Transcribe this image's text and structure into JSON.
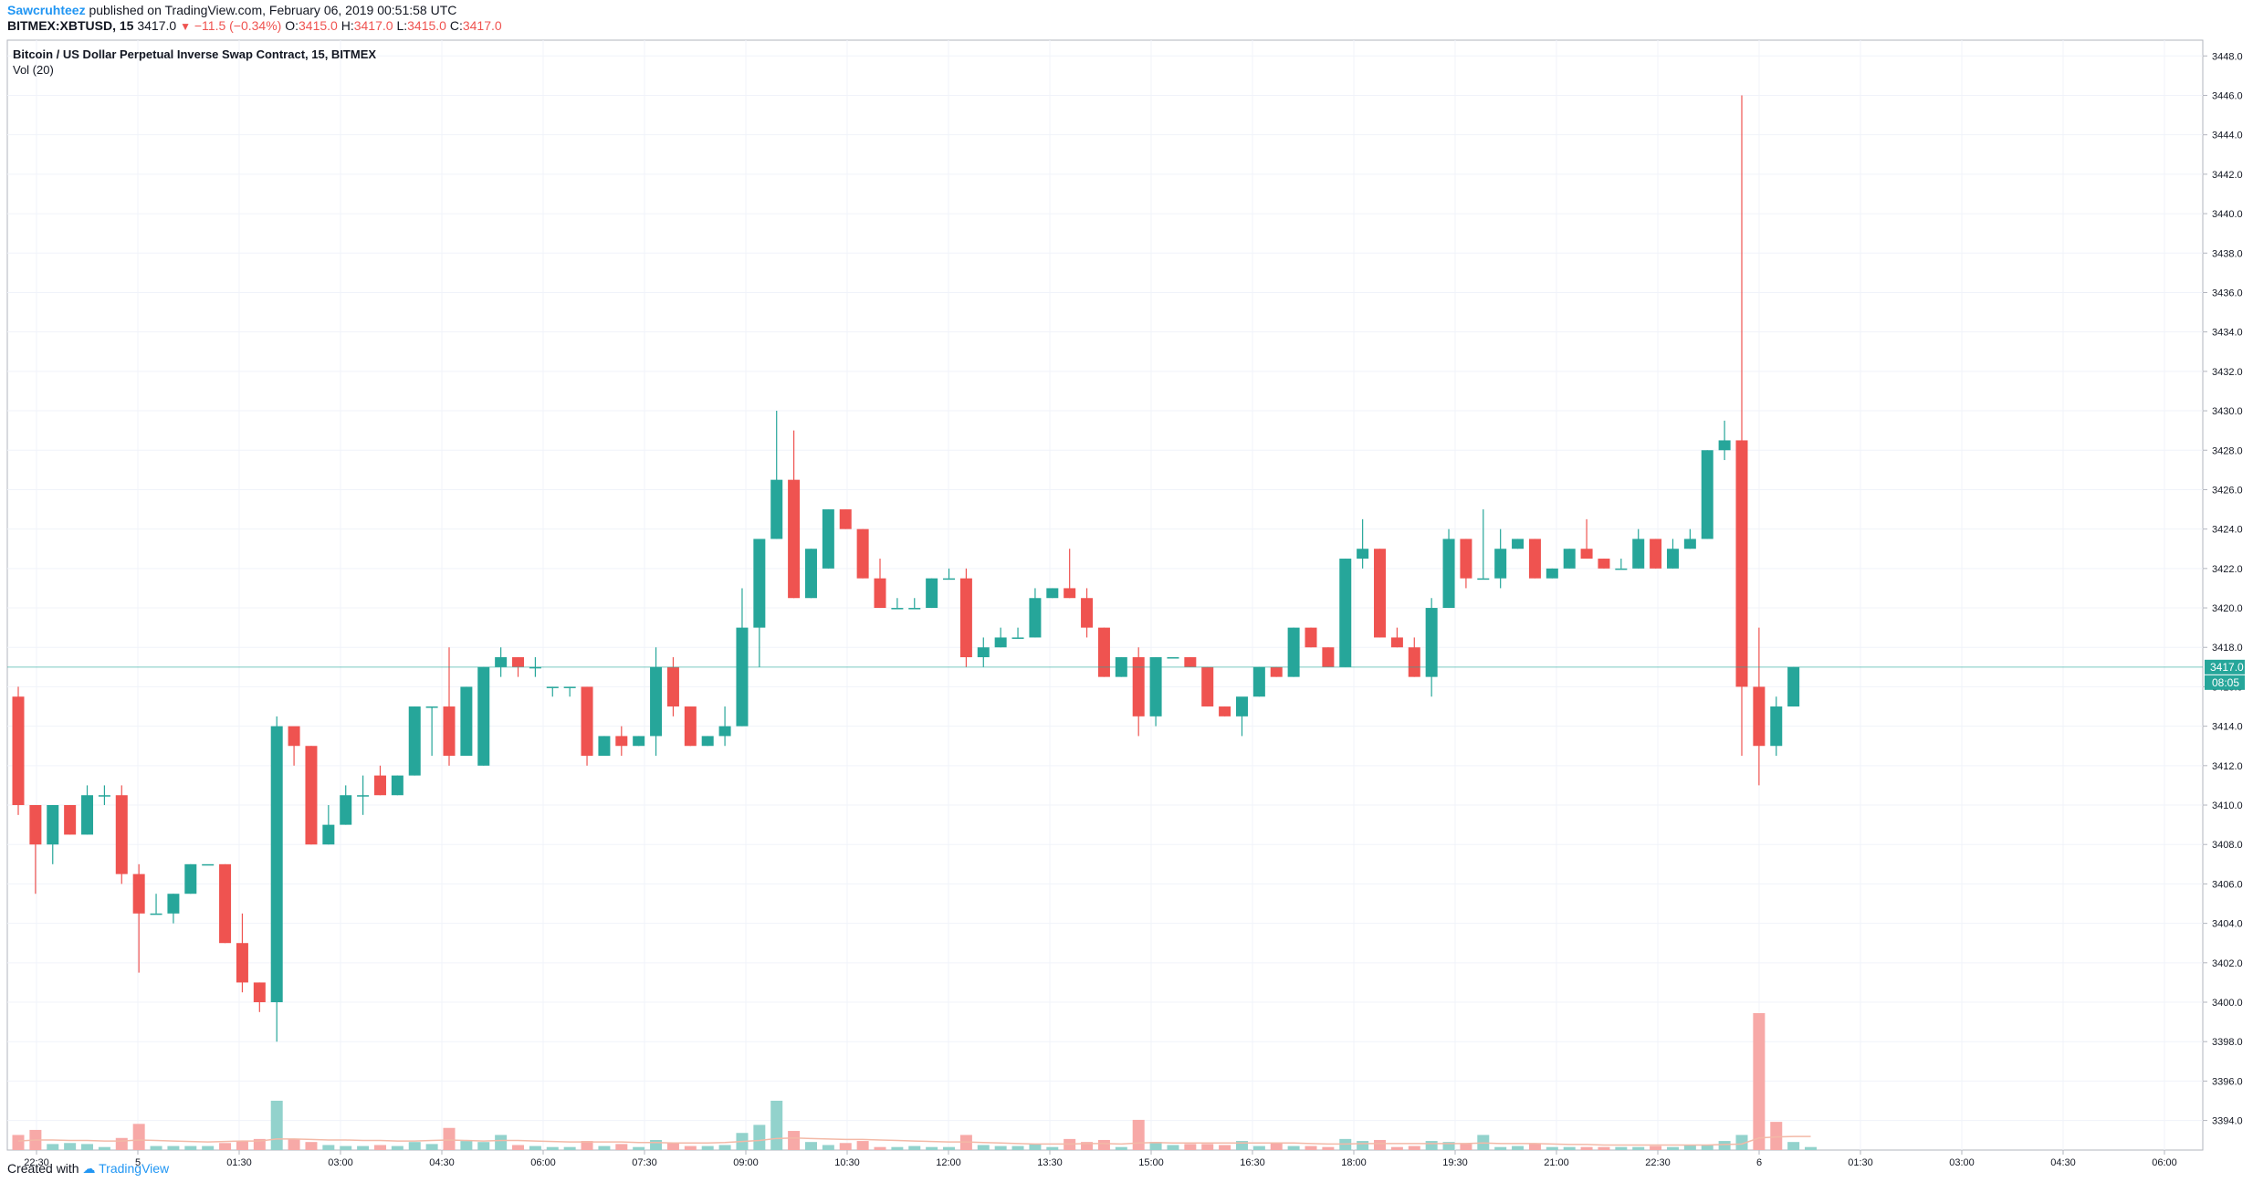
{
  "header": {
    "user": "Sawcruhteez",
    "published": "published on TradingView.com, February 06, 2019 00:51:58 UTC"
  },
  "symbol_bar": {
    "symbol": "BITMEX:XBTUSD, 15",
    "last": "3417.0",
    "change": "−11.5 (−0.34%)",
    "o_label": "O:",
    "o": "3415.0",
    "h_label": "H:",
    "h": "3417.0",
    "l_label": "L:",
    "l": "3415.0",
    "c_label": "C:",
    "c": "3417.0"
  },
  "footer": {
    "created_with": "Created with",
    "brand": "TradingView"
  },
  "colors": {
    "up": "#26a69a",
    "down": "#ef5350",
    "vol_up": "#92d2cc",
    "vol_down": "#f7a9a7",
    "grid": "#f0f3fa",
    "axis": "#787b86",
    "price_line": "#26a69a"
  },
  "chart_data": {
    "type": "candlestick",
    "title": "Bitcoin / US Dollar Perpetual Inverse Swap Contract, 15, BITMEX",
    "subtitle": "Vol (20)",
    "interval_minutes": 15,
    "ylim": [
      3392.5,
      3448.8
    ],
    "y_ticks": [
      "3394.0",
      "3396.0",
      "3398.0",
      "3400.0",
      "3402.0",
      "3404.0",
      "3406.0",
      "3408.0",
      "3410.0",
      "3412.0",
      "3414.0",
      "3416.0",
      "3418.0",
      "3420.0",
      "3422.0",
      "3424.0",
      "3426.0",
      "3428.0",
      "3430.0",
      "3432.0",
      "3434.0",
      "3436.0",
      "3438.0",
      "3440.0",
      "3442.0",
      "3444.0",
      "3446.0",
      "3448.0"
    ],
    "x_ticks": [
      "22:30",
      "5",
      "01:30",
      "03:00",
      "04:30",
      "06:00",
      "07:30",
      "09:00",
      "10:30",
      "12:00",
      "13:30",
      "15:00",
      "16:30",
      "18:00",
      "19:30",
      "21:00",
      "22:30",
      "6",
      "01:30",
      "03:00",
      "04:30",
      "06:00"
    ],
    "last_price_label": "3417.0",
    "countdown_label": "08:05",
    "last_price": 3417.0,
    "candles": [
      {
        "o": 3415.5,
        "h": 3416.0,
        "l": 3409.5,
        "c": 3410.0
      },
      {
        "o": 3410.0,
        "h": 3410.0,
        "l": 3405.5,
        "c": 3408.0
      },
      {
        "o": 3408.0,
        "h": 3410.0,
        "l": 3407.0,
        "c": 3410.0
      },
      {
        "o": 3410.0,
        "h": 3410.0,
        "l": 3408.5,
        "c": 3408.5
      },
      {
        "o": 3408.5,
        "h": 3411.0,
        "l": 3408.5,
        "c": 3410.5
      },
      {
        "o": 3410.5,
        "h": 3411.0,
        "l": 3410.0,
        "c": 3410.5
      },
      {
        "o": 3410.5,
        "h": 3411.0,
        "l": 3406.0,
        "c": 3406.5
      },
      {
        "o": 3406.5,
        "h": 3407.0,
        "l": 3401.5,
        "c": 3404.5
      },
      {
        "o": 3404.5,
        "h": 3405.5,
        "l": 3404.5,
        "c": 3404.5
      },
      {
        "o": 3404.5,
        "h": 3405.5,
        "l": 3404.0,
        "c": 3405.5
      },
      {
        "o": 3405.5,
        "h": 3407.0,
        "l": 3405.5,
        "c": 3407.0
      },
      {
        "o": 3407.0,
        "h": 3407.0,
        "l": 3407.0,
        "c": 3407.0
      },
      {
        "o": 3407.0,
        "h": 3407.0,
        "l": 3403.0,
        "c": 3403.0
      },
      {
        "o": 3403.0,
        "h": 3404.5,
        "l": 3400.5,
        "c": 3401.0
      },
      {
        "o": 3401.0,
        "h": 3401.0,
        "l": 3399.5,
        "c": 3400.0
      },
      {
        "o": 3400.0,
        "h": 3414.5,
        "l": 3398.0,
        "c": 3414.0
      },
      {
        "o": 3414.0,
        "h": 3413.5,
        "l": 3412.0,
        "c": 3413.0
      },
      {
        "o": 3413.0,
        "h": 3413.0,
        "l": 3408.0,
        "c": 3408.0
      },
      {
        "o": 3408.0,
        "h": 3410.0,
        "l": 3408.0,
        "c": 3409.0
      },
      {
        "o": 3409.0,
        "h": 3411.0,
        "l": 3409.0,
        "c": 3410.5
      },
      {
        "o": 3410.5,
        "h": 3411.5,
        "l": 3409.5,
        "c": 3410.5
      },
      {
        "o": 3411.5,
        "h": 3412.0,
        "l": 3410.5,
        "c": 3410.5
      },
      {
        "o": 3410.5,
        "h": 3411.5,
        "l": 3410.5,
        "c": 3411.5
      },
      {
        "o": 3411.5,
        "h": 3415.0,
        "l": 3411.5,
        "c": 3415.0
      },
      {
        "o": 3415.0,
        "h": 3415.0,
        "l": 3412.5,
        "c": 3415.0
      },
      {
        "o": 3415.0,
        "h": 3418.0,
        "l": 3412.0,
        "c": 3412.5
      },
      {
        "o": 3412.5,
        "h": 3416.0,
        "l": 3412.5,
        "c": 3416.0
      },
      {
        "o": 3412.0,
        "h": 3417.0,
        "l": 3412.0,
        "c": 3417.0
      },
      {
        "o": 3417.0,
        "h": 3418.0,
        "l": 3416.5,
        "c": 3417.5
      },
      {
        "o": 3417.5,
        "h": 3417.5,
        "l": 3416.5,
        "c": 3417.0
      },
      {
        "o": 3417.0,
        "h": 3417.5,
        "l": 3416.5,
        "c": 3417.0
      },
      {
        "o": 3416.0,
        "h": 3416.0,
        "l": 3415.5,
        "c": 3416.0
      },
      {
        "o": 3416.0,
        "h": 3416.0,
        "l": 3415.5,
        "c": 3416.0
      },
      {
        "o": 3416.0,
        "h": 3416.0,
        "l": 3412.0,
        "c": 3412.5
      },
      {
        "o": 3412.5,
        "h": 3413.5,
        "l": 3412.5,
        "c": 3413.5
      },
      {
        "o": 3413.5,
        "h": 3414.0,
        "l": 3412.5,
        "c": 3413.0
      },
      {
        "o": 3413.0,
        "h": 3413.5,
        "l": 3413.0,
        "c": 3413.5
      },
      {
        "o": 3413.5,
        "h": 3418.0,
        "l": 3412.5,
        "c": 3417.0
      },
      {
        "o": 3417.0,
        "h": 3417.5,
        "l": 3414.5,
        "c": 3415.0
      },
      {
        "o": 3415.0,
        "h": 3415.0,
        "l": 3413.0,
        "c": 3413.0
      },
      {
        "o": 3413.0,
        "h": 3413.5,
        "l": 3413.0,
        "c": 3413.5
      },
      {
        "o": 3413.5,
        "h": 3415.0,
        "l": 3413.0,
        "c": 3414.0
      },
      {
        "o": 3414.0,
        "h": 3421.0,
        "l": 3414.0,
        "c": 3419.0
      },
      {
        "o": 3419.0,
        "h": 3423.5,
        "l": 3417.0,
        "c": 3423.5
      },
      {
        "o": 3423.5,
        "h": 3430.0,
        "l": 3423.5,
        "c": 3426.5
      },
      {
        "o": 3426.5,
        "h": 3429.0,
        "l": 3420.5,
        "c": 3420.5
      },
      {
        "o": 3420.5,
        "h": 3423.0,
        "l": 3420.5,
        "c": 3423.0
      },
      {
        "o": 3422.0,
        "h": 3425.0,
        "l": 3422.0,
        "c": 3425.0
      },
      {
        "o": 3425.0,
        "h": 3425.0,
        "l": 3424.0,
        "c": 3424.0
      },
      {
        "o": 3424.0,
        "h": 3424.0,
        "l": 3421.5,
        "c": 3421.5
      },
      {
        "o": 3421.5,
        "h": 3422.5,
        "l": 3420.0,
        "c": 3420.0
      },
      {
        "o": 3420.0,
        "h": 3420.5,
        "l": 3420.0,
        "c": 3420.0
      },
      {
        "o": 3420.0,
        "h": 3420.5,
        "l": 3420.0,
        "c": 3420.0
      },
      {
        "o": 3420.0,
        "h": 3421.5,
        "l": 3420.0,
        "c": 3421.5
      },
      {
        "o": 3421.5,
        "h": 3422.0,
        "l": 3421.5,
        "c": 3421.5
      },
      {
        "o": 3421.5,
        "h": 3422.0,
        "l": 3417.0,
        "c": 3417.5
      },
      {
        "o": 3417.5,
        "h": 3418.5,
        "l": 3417.0,
        "c": 3418.0
      },
      {
        "o": 3418.0,
        "h": 3419.0,
        "l": 3418.0,
        "c": 3418.5
      },
      {
        "o": 3418.5,
        "h": 3419.0,
        "l": 3418.5,
        "c": 3418.5
      },
      {
        "o": 3418.5,
        "h": 3421.0,
        "l": 3418.5,
        "c": 3420.5
      },
      {
        "o": 3420.5,
        "h": 3421.0,
        "l": 3420.5,
        "c": 3421.0
      },
      {
        "o": 3421.0,
        "h": 3423.0,
        "l": 3420.5,
        "c": 3420.5
      },
      {
        "o": 3420.5,
        "h": 3421.0,
        "l": 3418.5,
        "c": 3419.0
      },
      {
        "o": 3419.0,
        "h": 3419.0,
        "l": 3416.5,
        "c": 3416.5
      },
      {
        "o": 3416.5,
        "h": 3417.5,
        "l": 3416.5,
        "c": 3417.5
      },
      {
        "o": 3417.5,
        "h": 3418.0,
        "l": 3413.5,
        "c": 3414.5
      },
      {
        "o": 3414.5,
        "h": 3417.5,
        "l": 3414.0,
        "c": 3417.5
      },
      {
        "o": 3417.5,
        "h": 3417.5,
        "l": 3417.5,
        "c": 3417.5
      },
      {
        "o": 3417.5,
        "h": 3417.5,
        "l": 3417.0,
        "c": 3417.0
      },
      {
        "o": 3417.0,
        "h": 3417.0,
        "l": 3415.0,
        "c": 3415.0
      },
      {
        "o": 3415.0,
        "h": 3415.0,
        "l": 3414.5,
        "c": 3414.5
      },
      {
        "o": 3414.5,
        "h": 3415.0,
        "l": 3413.5,
        "c": 3415.5
      },
      {
        "o": 3415.5,
        "h": 3417.0,
        "l": 3415.5,
        "c": 3417.0
      },
      {
        "o": 3417.0,
        "h": 3417.0,
        "l": 3416.5,
        "c": 3416.5
      },
      {
        "o": 3416.5,
        "h": 3419.0,
        "l": 3416.5,
        "c": 3419.0
      },
      {
        "o": 3419.0,
        "h": 3419.0,
        "l": 3418.0,
        "c": 3418.0
      },
      {
        "o": 3418.0,
        "h": 3418.0,
        "l": 3417.0,
        "c": 3417.0
      },
      {
        "o": 3417.0,
        "h": 3422.5,
        "l": 3417.0,
        "c": 3422.5
      },
      {
        "o": 3422.5,
        "h": 3424.5,
        "l": 3422.0,
        "c": 3423.0
      },
      {
        "o": 3423.0,
        "h": 3423.0,
        "l": 3418.5,
        "c": 3418.5
      },
      {
        "o": 3418.5,
        "h": 3419.0,
        "l": 3418.0,
        "c": 3418.0
      },
      {
        "o": 3418.0,
        "h": 3418.5,
        "l": 3416.5,
        "c": 3416.5
      },
      {
        "o": 3416.5,
        "h": 3420.5,
        "l": 3415.5,
        "c": 3420.0
      },
      {
        "o": 3420.0,
        "h": 3424.0,
        "l": 3420.0,
        "c": 3423.5
      },
      {
        "o": 3423.5,
        "h": 3423.5,
        "l": 3421.0,
        "c": 3421.5
      },
      {
        "o": 3421.5,
        "h": 3425.0,
        "l": 3421.5,
        "c": 3421.5
      },
      {
        "o": 3421.5,
        "h": 3424.0,
        "l": 3421.0,
        "c": 3423.0
      },
      {
        "o": 3423.0,
        "h": 3423.5,
        "l": 3423.0,
        "c": 3423.5
      },
      {
        "o": 3423.5,
        "h": 3423.5,
        "l": 3421.5,
        "c": 3421.5
      },
      {
        "o": 3421.5,
        "h": 3422.0,
        "l": 3421.5,
        "c": 3422.0
      },
      {
        "o": 3422.0,
        "h": 3423.0,
        "l": 3422.0,
        "c": 3423.0
      },
      {
        "o": 3423.0,
        "h": 3424.5,
        "l": 3422.5,
        "c": 3422.5
      },
      {
        "o": 3422.5,
        "h": 3422.5,
        "l": 3422.0,
        "c": 3422.0
      },
      {
        "o": 3422.0,
        "h": 3422.5,
        "l": 3422.0,
        "c": 3422.0
      },
      {
        "o": 3422.0,
        "h": 3424.0,
        "l": 3422.0,
        "c": 3423.5
      },
      {
        "o": 3423.5,
        "h": 3423.5,
        "l": 3422.0,
        "c": 3422.0
      },
      {
        "o": 3422.0,
        "h": 3423.5,
        "l": 3422.0,
        "c": 3423.0
      },
      {
        "o": 3423.0,
        "h": 3424.0,
        "l": 3423.0,
        "c": 3423.5
      },
      {
        "o": 3423.5,
        "h": 3428.0,
        "l": 3423.5,
        "c": 3428.0
      },
      {
        "o": 3428.0,
        "h": 3429.5,
        "l": 3427.5,
        "c": 3428.5
      },
      {
        "o": 3428.5,
        "h": 3446.0,
        "l": 3412.5,
        "c": 3416.0
      },
      {
        "o": 3416.0,
        "h": 3419.0,
        "l": 3411.0,
        "c": 3413.0
      },
      {
        "o": 3413.0,
        "h": 3415.5,
        "l": 3412.5,
        "c": 3415.0
      },
      {
        "o": 3415.0,
        "h": 3417.0,
        "l": 3415.0,
        "c": 3417.0
      }
    ],
    "volume": [
      {
        "v": 1.5,
        "d": true
      },
      {
        "v": 2.0,
        "d": true
      },
      {
        "v": 0.6,
        "d": false
      },
      {
        "v": 0.7,
        "d": false
      },
      {
        "v": 0.6,
        "d": false
      },
      {
        "v": 0.3,
        "d": false
      },
      {
        "v": 1.2,
        "d": true
      },
      {
        "v": 2.6,
        "d": true
      },
      {
        "v": 0.4,
        "d": false
      },
      {
        "v": 0.4,
        "d": false
      },
      {
        "v": 0.4,
        "d": false
      },
      {
        "v": 0.4,
        "d": false
      },
      {
        "v": 0.7,
        "d": true
      },
      {
        "v": 0.9,
        "d": true
      },
      {
        "v": 1.1,
        "d": true
      },
      {
        "v": 4.9,
        "d": false
      },
      {
        "v": 1.1,
        "d": true
      },
      {
        "v": 0.8,
        "d": true
      },
      {
        "v": 0.5,
        "d": false
      },
      {
        "v": 0.4,
        "d": false
      },
      {
        "v": 0.4,
        "d": false
      },
      {
        "v": 0.5,
        "d": true
      },
      {
        "v": 0.4,
        "d": false
      },
      {
        "v": 0.8,
        "d": false
      },
      {
        "v": 0.6,
        "d": false
      },
      {
        "v": 2.2,
        "d": true
      },
      {
        "v": 0.9,
        "d": false
      },
      {
        "v": 0.8,
        "d": false
      },
      {
        "v": 1.5,
        "d": false
      },
      {
        "v": 0.5,
        "d": true
      },
      {
        "v": 0.4,
        "d": false
      },
      {
        "v": 0.3,
        "d": false
      },
      {
        "v": 0.3,
        "d": false
      },
      {
        "v": 0.9,
        "d": true
      },
      {
        "v": 0.4,
        "d": false
      },
      {
        "v": 0.6,
        "d": true
      },
      {
        "v": 0.3,
        "d": false
      },
      {
        "v": 1.0,
        "d": false
      },
      {
        "v": 0.7,
        "d": true
      },
      {
        "v": 0.4,
        "d": true
      },
      {
        "v": 0.4,
        "d": false
      },
      {
        "v": 0.5,
        "d": false
      },
      {
        "v": 1.7,
        "d": false
      },
      {
        "v": 2.5,
        "d": false
      },
      {
        "v": 4.9,
        "d": false
      },
      {
        "v": 1.9,
        "d": true
      },
      {
        "v": 0.8,
        "d": false
      },
      {
        "v": 0.5,
        "d": false
      },
      {
        "v": 0.7,
        "d": true
      },
      {
        "v": 0.9,
        "d": true
      },
      {
        "v": 0.3,
        "d": true
      },
      {
        "v": 0.3,
        "d": false
      },
      {
        "v": 0.4,
        "d": false
      },
      {
        "v": 0.3,
        "d": false
      },
      {
        "v": 0.3,
        "d": false
      },
      {
        "v": 1.5,
        "d": true
      },
      {
        "v": 0.5,
        "d": false
      },
      {
        "v": 0.4,
        "d": false
      },
      {
        "v": 0.4,
        "d": false
      },
      {
        "v": 0.6,
        "d": false
      },
      {
        "v": 0.3,
        "d": false
      },
      {
        "v": 1.1,
        "d": true
      },
      {
        "v": 0.8,
        "d": true
      },
      {
        "v": 1.0,
        "d": true
      },
      {
        "v": 0.3,
        "d": false
      },
      {
        "v": 3.0,
        "d": true
      },
      {
        "v": 0.8,
        "d": false
      },
      {
        "v": 0.5,
        "d": false
      },
      {
        "v": 0.6,
        "d": true
      },
      {
        "v": 0.6,
        "d": true
      },
      {
        "v": 0.5,
        "d": true
      },
      {
        "v": 0.9,
        "d": false
      },
      {
        "v": 0.4,
        "d": false
      },
      {
        "v": 0.7,
        "d": true
      },
      {
        "v": 0.4,
        "d": false
      },
      {
        "v": 0.4,
        "d": true
      },
      {
        "v": 0.3,
        "d": true
      },
      {
        "v": 1.1,
        "d": false
      },
      {
        "v": 0.9,
        "d": false
      },
      {
        "v": 1.0,
        "d": true
      },
      {
        "v": 0.3,
        "d": true
      },
      {
        "v": 0.4,
        "d": true
      },
      {
        "v": 0.9,
        "d": false
      },
      {
        "v": 0.8,
        "d": false
      },
      {
        "v": 0.6,
        "d": true
      },
      {
        "v": 1.5,
        "d": false
      },
      {
        "v": 0.3,
        "d": false
      },
      {
        "v": 0.4,
        "d": false
      },
      {
        "v": 0.6,
        "d": true
      },
      {
        "v": 0.3,
        "d": false
      },
      {
        "v": 0.3,
        "d": false
      },
      {
        "v": 0.3,
        "d": true
      },
      {
        "v": 0.3,
        "d": true
      },
      {
        "v": 0.3,
        "d": false
      },
      {
        "v": 0.3,
        "d": false
      },
      {
        "v": 0.4,
        "d": true
      },
      {
        "v": 0.3,
        "d": false
      },
      {
        "v": 0.5,
        "d": false
      },
      {
        "v": 0.5,
        "d": false
      },
      {
        "v": 0.9,
        "d": false
      },
      {
        "v": 1.5,
        "d": false
      },
      {
        "v": 13.6,
        "d": true
      },
      {
        "v": 2.8,
        "d": true
      },
      {
        "v": 0.8,
        "d": false
      },
      {
        "v": 0.3,
        "d": false
      }
    ],
    "volume_ma": [
      0.9,
      1.0,
      1.0,
      0.95,
      0.95,
      0.9,
      0.9,
      1.0,
      0.95,
      0.9,
      0.85,
      0.8,
      0.85,
      0.9,
      0.9,
      1.1,
      1.1,
      1.05,
      1.0,
      1.0,
      0.95,
      0.95,
      0.9,
      0.9,
      0.95,
      1.0,
      0.95,
      0.9,
      0.95,
      0.95,
      0.9,
      0.85,
      0.8,
      0.8,
      0.8,
      0.8,
      0.75,
      0.75,
      0.7,
      0.7,
      0.7,
      0.75,
      0.85,
      0.95,
      1.15,
      1.2,
      1.15,
      1.1,
      1.05,
      1.05,
      1.0,
      0.95,
      0.9,
      0.85,
      0.8,
      0.8,
      0.75,
      0.7,
      0.65,
      0.6,
      0.6,
      0.6,
      0.65,
      0.65,
      0.6,
      0.7,
      0.75,
      0.7,
      0.7,
      0.7,
      0.7,
      0.7,
      0.7,
      0.7,
      0.7,
      0.65,
      0.6,
      0.6,
      0.65,
      0.65,
      0.65,
      0.65,
      0.65,
      0.65,
      0.65,
      0.7,
      0.65,
      0.65,
      0.65,
      0.6,
      0.55,
      0.55,
      0.5,
      0.5,
      0.5,
      0.5,
      0.5,
      0.5,
      0.5,
      0.55,
      0.6,
      1.2,
      1.3,
      1.35,
      1.35
    ]
  }
}
